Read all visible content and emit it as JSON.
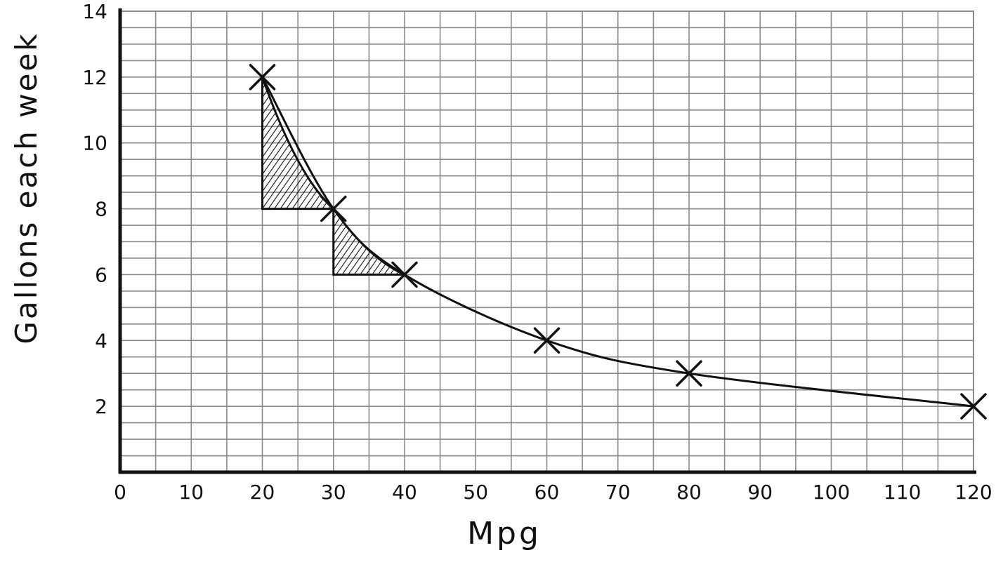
{
  "chart_data": {
    "type": "line",
    "title": "",
    "xlabel": "Mpg",
    "ylabel": "Gallons each week",
    "xlim": [
      0,
      120
    ],
    "ylim": [
      0,
      14
    ],
    "x_ticks": [
      "0",
      "10",
      "20",
      "30",
      "40",
      "50",
      "60",
      "70",
      "80",
      "90",
      "100",
      "110",
      "120"
    ],
    "y_ticks": [
      "2",
      "4",
      "6",
      "8",
      "10",
      "12",
      "14"
    ],
    "grid": true,
    "grid_minor_x": 5,
    "grid_minor_y": 1,
    "x": [
      20,
      30,
      40,
      60,
      80,
      120
    ],
    "y": [
      12,
      8,
      6,
      4,
      3,
      2
    ],
    "shaded_regions": [
      {
        "x": [
          20,
          30
        ],
        "y": [
          12,
          8
        ]
      },
      {
        "x": [
          30,
          40
        ],
        "y": [
          8,
          6
        ]
      }
    ],
    "colors": {
      "ink": "#111111",
      "grid": "#8a8a8a",
      "background": "#ffffff"
    }
  }
}
